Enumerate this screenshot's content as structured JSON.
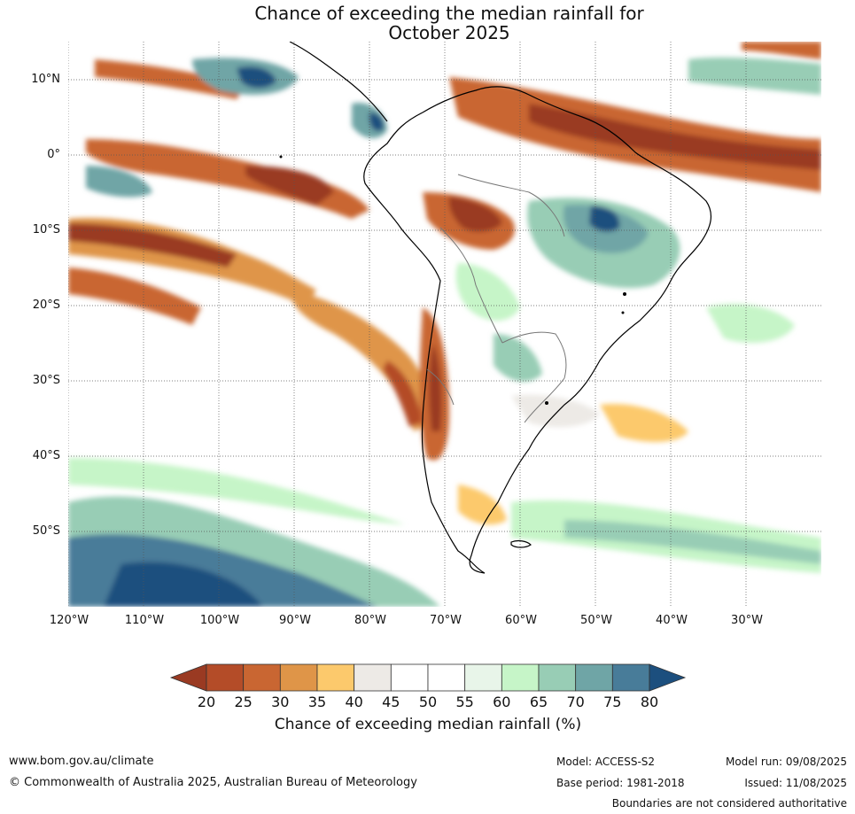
{
  "title": {
    "line1": "Chance of exceeding the median rainfall for",
    "line2": "October 2025"
  },
  "map": {
    "lat_labels": [
      "10°N",
      "0°",
      "10°S",
      "20°S",
      "30°S",
      "40°S",
      "50°S"
    ],
    "lon_labels": [
      "120°W",
      "110°W",
      "100°W",
      "90°W",
      "80°W",
      "70°W",
      "60°W",
      "50°W",
      "40°W",
      "30°W"
    ]
  },
  "colorbar": {
    "ticks": [
      "20",
      "25",
      "30",
      "35",
      "40",
      "45",
      "50",
      "55",
      "60",
      "65",
      "70",
      "75",
      "80"
    ],
    "colors": [
      "#9a3a22",
      "#b44c28",
      "#c96632",
      "#df9548",
      "#fcc96c",
      "#edeae6",
      "#ffffff",
      "#ffffff",
      "#e8f5e9",
      "#c6f5c8",
      "#98cdb5",
      "#6fa5a6",
      "#487c99",
      "#1c4f7e"
    ],
    "title": "Chance of exceeding median rainfall (%)"
  },
  "footer": {
    "website": "www.bom.gov.au/climate",
    "copyright": "© Commonwealth of Australia 2025, Australian Bureau of Meteorology",
    "model": "Model: ACCESS-S2",
    "base_period": "Base period: 1981-2018",
    "model_run": "Model run: 09/08/2025",
    "issued": "Issued: 11/08/2025",
    "disclaimer": "Boundaries are not considered authoritative"
  }
}
